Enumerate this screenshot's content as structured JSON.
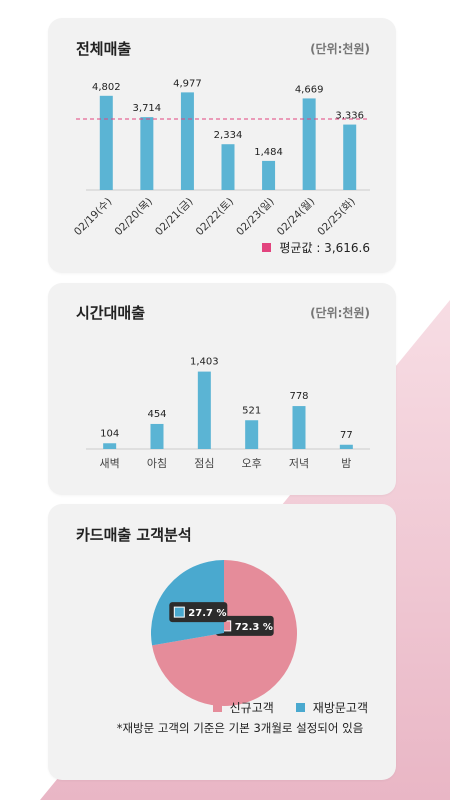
{
  "colors": {
    "bar": "#5bb4d4",
    "avg": "#e2447e",
    "pink": "#e58c9a",
    "blue": "#4aa9cf",
    "tooltip": "#2c2c2c"
  },
  "total_sales": {
    "title": "전체매출",
    "unit": "(단위:천원)",
    "avg_label": "평균값 : 3,616.6"
  },
  "hourly_sales": {
    "title": "시간대매출",
    "unit": "(단위:천원)"
  },
  "card_customers": {
    "title": "카드매출 고객분석",
    "legend_new": "신규고객",
    "legend_return": "재방문고객",
    "note": "*재방문 고객의 기준은 기본 3개월로 설정되어 있음"
  },
  "chart_data": [
    {
      "type": "bar",
      "title": "전체매출",
      "categories": [
        "02/19(수)",
        "02/20(목)",
        "02/21(금)",
        "02/22(토)",
        "02/23(일)",
        "02/24(월)",
        "02/25(화)"
      ],
      "values": [
        4802,
        3714,
        4977,
        2334,
        1484,
        4669,
        3336
      ],
      "value_labels": [
        "4,802",
        "3,714",
        "4,977",
        "2,334",
        "1,484",
        "4,669",
        "3,336"
      ],
      "average": 3616.6,
      "ylim": [
        0,
        5200
      ]
    },
    {
      "type": "bar",
      "title": "시간대매출",
      "categories": [
        "새벽",
        "아침",
        "점심",
        "오후",
        "저녁",
        "밤"
      ],
      "values": [
        104,
        454,
        1403,
        521,
        778,
        77
      ],
      "value_labels": [
        "104",
        "454",
        "1,403",
        "521",
        "778",
        "77"
      ],
      "ylim": [
        0,
        1450
      ]
    },
    {
      "type": "pie",
      "title": "카드매출 고객분석",
      "series": [
        {
          "name": "신규고객",
          "value": 72.3,
          "label": "72.3 %"
        },
        {
          "name": "재방문고객",
          "value": 27.7,
          "label": "27.7 %"
        }
      ]
    }
  ]
}
